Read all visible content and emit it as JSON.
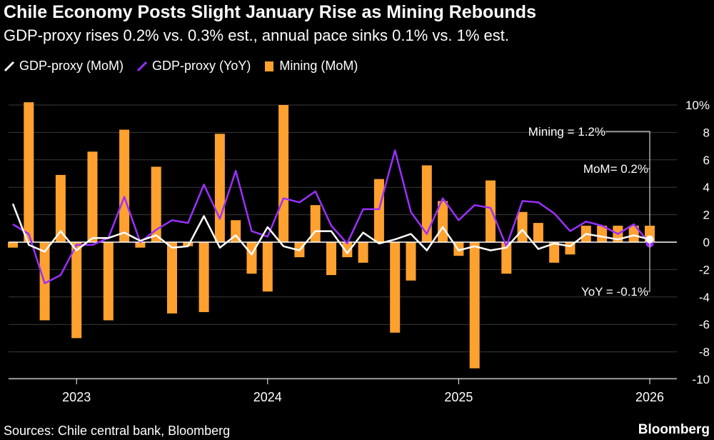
{
  "title": "Chile Economy Posts Slight January Rise as Mining Rebounds",
  "subtitle": "GDP-proxy rises 0.2% vs. 0.3% est., annual pace sinks 0.1% vs. 1% est.",
  "legend": {
    "mom": "GDP-proxy (MoM)",
    "yoy": "GDP-proxy (YoY)",
    "mining": "Mining (MoM)"
  },
  "colors": {
    "mom": "#ffffff",
    "yoy": "#9b30ff",
    "mining": "#ffa12f",
    "grid": "#3a3a3a"
  },
  "annotations": {
    "mining": "Mining = 1.2%",
    "mom": "MoM= 0.2%",
    "yoy": "YoY = -0.1%"
  },
  "source": "Sources: Chile central bank, Bloomberg",
  "brand": "Bloomberg",
  "chart_data": {
    "type": "bar+line",
    "ylim": [
      -11,
      10
    ],
    "yticks": [
      "10%",
      "8",
      "6",
      "4",
      "2",
      "0",
      "-2",
      "-4",
      "-6",
      "-8",
      "-10"
    ],
    "ytick_values": [
      10,
      8,
      6,
      4,
      2,
      0,
      -2,
      -4,
      -6,
      -8,
      -10
    ],
    "xticks": [
      "2023",
      "2024",
      "2025",
      "2026"
    ],
    "xtick_index": [
      4,
      16,
      28,
      40
    ],
    "months": [
      "2022-09",
      "2022-10",
      "2022-11",
      "2022-12",
      "2023-01",
      "2023-02",
      "2023-03",
      "2023-04",
      "2023-05",
      "2023-06",
      "2023-07",
      "2023-08",
      "2023-09",
      "2023-10",
      "2023-11",
      "2023-12",
      "2024-01",
      "2024-02",
      "2024-03",
      "2024-04",
      "2024-05",
      "2024-06",
      "2024-07",
      "2024-08",
      "2024-09",
      "2024-10",
      "2024-11",
      "2024-12",
      "2025-01",
      "2025-02",
      "2025-03",
      "2025-04",
      "2025-05",
      "2025-06",
      "2025-07",
      "2025-08",
      "2025-09",
      "2025-10",
      "2025-11",
      "2025-12",
      "2026-01"
    ],
    "series": [
      {
        "name": "Mining (MoM)",
        "kind": "bar",
        "values": [
          -0.4,
          10.2,
          -5.7,
          4.9,
          -7.0,
          6.6,
          -5.7,
          8.2,
          -0.4,
          5.5,
          -5.2,
          -0.3,
          -5.1,
          7.9,
          1.6,
          -2.3,
          -3.6,
          10.0,
          -1.1,
          2.7,
          -2.4,
          -1.1,
          -1.5,
          4.6,
          -6.6,
          -2.8,
          5.6,
          3.0,
          -1.0,
          -9.2,
          4.5,
          -2.3,
          2.2,
          1.4,
          -1.5,
          -0.9,
          1.2,
          1.2,
          1.2,
          1.2,
          1.2
        ]
      },
      {
        "name": "GDP-proxy (MoM)",
        "kind": "line",
        "values": [
          2.8,
          -0.2,
          -0.7,
          0.8,
          -0.6,
          0.3,
          0.3,
          0.7,
          0.1,
          0.5,
          -0.4,
          -0.3,
          1.9,
          -0.4,
          0.5,
          -0.9,
          1.1,
          -0.3,
          -0.6,
          0.8,
          0.8,
          -0.8,
          0.7,
          -0.1,
          0.2,
          0.6,
          -0.6,
          1.1,
          -0.6,
          -0.3,
          -0.6,
          -0.4,
          0.9,
          -0.5,
          -0.1,
          -0.3,
          0.6,
          0.4,
          0.2,
          0.5,
          0.2
        ]
      },
      {
        "name": "GDP-proxy (YoY)",
        "kind": "line",
        "values": [
          1.3,
          0.6,
          -3.0,
          -2.4,
          -0.2,
          -0.2,
          0.3,
          3.3,
          0.0,
          0.9,
          1.6,
          1.4,
          4.2,
          1.7,
          5.2,
          0.8,
          0.4,
          3.2,
          2.9,
          3.7,
          1.2,
          -0.1,
          2.4,
          2.4,
          6.7,
          2.2,
          0.6,
          3.2,
          1.6,
          2.7,
          2.5,
          -0.3,
          3.0,
          2.9,
          2.1,
          0.8,
          1.5,
          1.2,
          0.6,
          1.3,
          -0.1
        ]
      }
    ]
  }
}
